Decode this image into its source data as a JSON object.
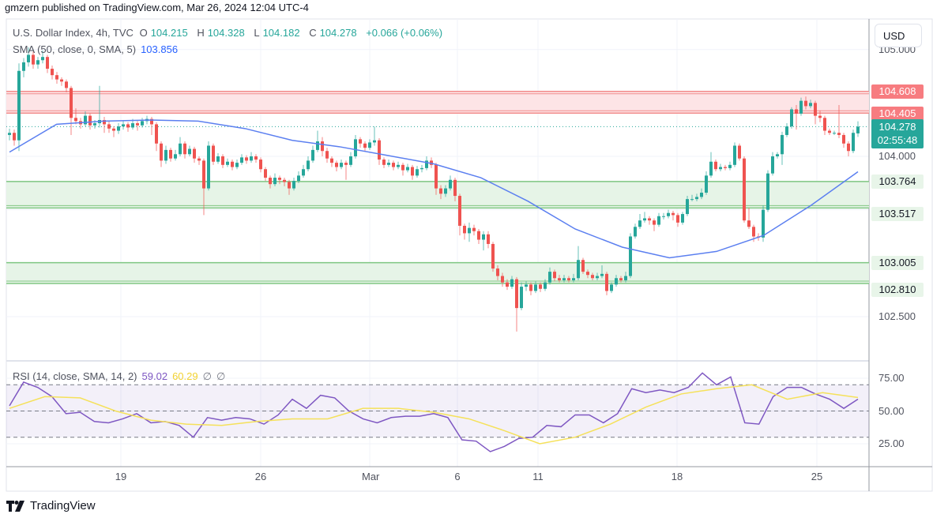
{
  "header": {
    "published": "gmzern published on TradingView.com, Mar 26, 2024 12:04 UTC-4"
  },
  "legend": {
    "symbol": "U.S. Dollar Index, 4h, TVC",
    "o_label": "O",
    "o": "104.215",
    "h_label": "H",
    "h": "104.328",
    "l_label": "L",
    "l": "104.182",
    "c_label": "C",
    "c": "104.278",
    "change": "+0.066 (+0.06%)"
  },
  "sma_legend": {
    "label": "SMA (50, close, 0, SMA, 5)",
    "value": "103.856"
  },
  "rsi_legend": {
    "label": "RSI (14, close, SMA, 14, 2)",
    "value": "59.02",
    "ma_value": "60.29",
    "extra1": "∅",
    "extra2": "∅"
  },
  "currency_button": "USD",
  "footer": {
    "logo_text": "TradingView"
  },
  "colors": {
    "up": "#26a69a",
    "down": "#ef5350",
    "sma": "#5b7ff0",
    "rsi": "#7e57c2",
    "rsi_ma": "#f5e15a",
    "resistance_zone": "#f28b8b",
    "support_zone": "#81c784"
  },
  "chart_data": {
    "type": "candlestick",
    "title": "U.S. Dollar Index, 4h, TVC",
    "ylim": [
      102.0,
      105.2
    ],
    "grid": true,
    "x_ticks": [
      "19",
      "26",
      "Mar",
      "6",
      "11",
      "18",
      "25"
    ],
    "price_ticks": [
      "105.000",
      "104.000",
      "102.500"
    ],
    "candles": [
      [
        104.2,
        104.26,
        104.15,
        104.22
      ],
      [
        104.22,
        104.25,
        104.1,
        104.15
      ],
      [
        104.15,
        104.87,
        104.05,
        104.8
      ],
      [
        104.8,
        104.92,
        104.74,
        104.88
      ],
      [
        104.88,
        105.02,
        104.84,
        104.95
      ],
      [
        104.95,
        104.98,
        104.82,
        104.86
      ],
      [
        104.86,
        104.93,
        104.82,
        104.9
      ],
      [
        104.9,
        104.99,
        104.87,
        104.93
      ],
      [
        104.93,
        104.95,
        104.78,
        104.82
      ],
      [
        104.82,
        104.85,
        104.72,
        104.76
      ],
      [
        104.76,
        104.79,
        104.68,
        104.72
      ],
      [
        104.72,
        104.74,
        104.66,
        104.7
      ],
      [
        104.7,
        104.72,
        104.6,
        104.64
      ],
      [
        104.64,
        104.66,
        104.2,
        104.36
      ],
      [
        104.36,
        104.45,
        104.3,
        104.33
      ],
      [
        104.33,
        104.36,
        104.26,
        104.3
      ],
      [
        104.3,
        104.42,
        104.28,
        104.38
      ],
      [
        104.38,
        104.4,
        104.25,
        104.29
      ],
      [
        104.29,
        104.34,
        104.26,
        104.31
      ],
      [
        104.31,
        104.66,
        104.27,
        104.34
      ],
      [
        104.34,
        104.37,
        104.22,
        104.3
      ],
      [
        104.3,
        104.33,
        104.22,
        104.26
      ],
      [
        104.26,
        104.28,
        104.18,
        104.24
      ],
      [
        104.24,
        104.31,
        104.21,
        104.28
      ],
      [
        104.28,
        104.33,
        104.25,
        104.3
      ],
      [
        104.3,
        104.32,
        104.23,
        104.27
      ],
      [
        104.27,
        104.35,
        104.25,
        104.31
      ],
      [
        104.31,
        104.33,
        104.24,
        104.29
      ],
      [
        104.29,
        104.36,
        104.27,
        104.33
      ],
      [
        104.33,
        104.38,
        104.3,
        104.35
      ],
      [
        104.35,
        104.37,
        104.2,
        104.3
      ],
      [
        104.3,
        104.32,
        104.05,
        104.12
      ],
      [
        104.12,
        104.14,
        103.9,
        103.96
      ],
      [
        103.96,
        104.1,
        103.93,
        104.06
      ],
      [
        104.06,
        104.08,
        103.95,
        103.98
      ],
      [
        103.98,
        104.06,
        103.96,
        104.02
      ],
      [
        104.02,
        104.18,
        104.0,
        104.12
      ],
      [
        104.12,
        104.14,
        103.98,
        104.02
      ],
      [
        104.02,
        104.1,
        104.0,
        104.07
      ],
      [
        104.07,
        104.09,
        103.94,
        103.98
      ],
      [
        103.98,
        104.0,
        103.92,
        103.96
      ],
      [
        103.96,
        103.98,
        103.45,
        103.7
      ],
      [
        103.7,
        104.14,
        103.68,
        104.1
      ],
      [
        104.1,
        104.12,
        103.92,
        103.95
      ],
      [
        103.95,
        104.03,
        103.93,
        104.0
      ],
      [
        104.0,
        104.02,
        103.89,
        103.92
      ],
      [
        103.92,
        103.98,
        103.9,
        103.95
      ],
      [
        103.95,
        103.97,
        103.87,
        103.9
      ],
      [
        103.9,
        103.97,
        103.88,
        103.94
      ],
      [
        103.94,
        104.02,
        103.92,
        103.99
      ],
      [
        103.99,
        104.01,
        103.93,
        103.96
      ],
      [
        103.96,
        104.04,
        103.94,
        104.0
      ],
      [
        104.0,
        104.02,
        103.94,
        103.97
      ],
      [
        103.97,
        103.99,
        103.85,
        103.88
      ],
      [
        103.88,
        103.9,
        103.77,
        103.8
      ],
      [
        103.8,
        103.82,
        103.7,
        103.74
      ],
      [
        103.74,
        103.84,
        103.72,
        103.8
      ],
      [
        103.8,
        103.82,
        103.74,
        103.78
      ],
      [
        103.78,
        103.8,
        103.72,
        103.76
      ],
      [
        103.76,
        103.78,
        103.64,
        103.7
      ],
      [
        103.7,
        103.8,
        103.68,
        103.77
      ],
      [
        103.77,
        103.86,
        103.75,
        103.82
      ],
      [
        103.82,
        103.92,
        103.8,
        103.88
      ],
      [
        103.88,
        104.0,
        103.86,
        103.96
      ],
      [
        103.96,
        104.1,
        103.94,
        104.06
      ],
      [
        104.06,
        104.24,
        104.04,
        104.14
      ],
      [
        104.14,
        104.18,
        104.0,
        104.05
      ],
      [
        104.05,
        104.08,
        103.94,
        103.98
      ],
      [
        103.98,
        104.0,
        103.9,
        103.94
      ],
      [
        103.94,
        103.96,
        103.86,
        103.9
      ],
      [
        103.9,
        103.97,
        103.88,
        103.94
      ],
      [
        103.94,
        103.96,
        103.78,
        103.92
      ],
      [
        103.92,
        104.04,
        103.9,
        104.0
      ],
      [
        104.0,
        104.2,
        103.98,
        104.16
      ],
      [
        104.16,
        104.18,
        104.08,
        104.12
      ],
      [
        104.12,
        104.14,
        104.05,
        104.08
      ],
      [
        104.08,
        104.16,
        104.06,
        104.13
      ],
      [
        104.13,
        104.28,
        104.1,
        104.15
      ],
      [
        104.15,
        104.17,
        103.92,
        103.97
      ],
      [
        103.97,
        103.99,
        103.89,
        103.92
      ],
      [
        103.92,
        103.97,
        103.9,
        103.94
      ],
      [
        103.94,
        103.96,
        103.87,
        103.9
      ],
      [
        103.9,
        103.95,
        103.88,
        103.92
      ],
      [
        103.92,
        103.94,
        103.82,
        103.87
      ],
      [
        103.87,
        103.93,
        103.85,
        103.9
      ],
      [
        103.9,
        103.92,
        103.78,
        103.82
      ],
      [
        103.82,
        103.91,
        103.8,
        103.88
      ],
      [
        103.88,
        103.92,
        103.85,
        103.89
      ],
      [
        103.89,
        104.0,
        103.87,
        103.96
      ],
      [
        103.96,
        103.99,
        103.89,
        103.92
      ],
      [
        103.92,
        103.94,
        103.64,
        103.7
      ],
      [
        103.7,
        103.73,
        103.6,
        103.65
      ],
      [
        103.65,
        103.73,
        103.62,
        103.7
      ],
      [
        103.7,
        103.82,
        103.68,
        103.78
      ],
      [
        103.78,
        103.8,
        103.58,
        103.63
      ],
      [
        103.63,
        103.65,
        103.26,
        103.35
      ],
      [
        103.35,
        103.37,
        103.22,
        103.28
      ],
      [
        103.28,
        103.38,
        103.2,
        103.33
      ],
      [
        103.33,
        103.36,
        103.26,
        103.3
      ],
      [
        103.3,
        103.32,
        103.18,
        103.22
      ],
      [
        103.22,
        103.3,
        103.12,
        103.27
      ],
      [
        103.27,
        103.3,
        103.14,
        103.18
      ],
      [
        103.18,
        103.2,
        102.92,
        102.95
      ],
      [
        102.95,
        102.98,
        102.84,
        102.88
      ],
      [
        102.88,
        102.91,
        102.78,
        102.82
      ],
      [
        102.82,
        102.85,
        102.75,
        102.78
      ],
      [
        102.78,
        102.88,
        102.76,
        102.85
      ],
      [
        102.85,
        102.87,
        102.36,
        102.58
      ],
      [
        102.58,
        102.82,
        102.56,
        102.78
      ],
      [
        102.78,
        102.83,
        102.74,
        102.8
      ],
      [
        102.8,
        102.82,
        102.7,
        102.74
      ],
      [
        102.74,
        102.83,
        102.72,
        102.8
      ],
      [
        102.8,
        102.82,
        102.73,
        102.76
      ],
      [
        102.76,
        102.85,
        102.74,
        102.82
      ],
      [
        102.82,
        102.96,
        102.8,
        102.92
      ],
      [
        102.92,
        102.94,
        102.83,
        102.86
      ],
      [
        102.86,
        102.89,
        102.82,
        102.84
      ],
      [
        102.84,
        102.89,
        102.82,
        102.86
      ],
      [
        102.86,
        102.88,
        102.82,
        102.84
      ],
      [
        102.84,
        102.9,
        102.82,
        102.86
      ],
      [
        102.86,
        103.16,
        102.84,
        103.03
      ],
      [
        103.03,
        103.05,
        102.9,
        102.92
      ],
      [
        102.92,
        102.94,
        102.86,
        102.89
      ],
      [
        102.89,
        102.91,
        102.84,
        102.86
      ],
      [
        102.86,
        102.91,
        102.84,
        102.88
      ],
      [
        102.88,
        102.98,
        102.86,
        102.9
      ],
      [
        102.9,
        102.92,
        102.7,
        102.74
      ],
      [
        102.74,
        102.82,
        102.72,
        102.8
      ],
      [
        102.8,
        102.89,
        102.78,
        102.86
      ],
      [
        102.86,
        102.88,
        102.82,
        102.84
      ],
      [
        102.84,
        102.92,
        102.82,
        102.88
      ],
      [
        102.88,
        103.28,
        102.86,
        103.25
      ],
      [
        103.25,
        103.37,
        103.23,
        103.34
      ],
      [
        103.34,
        103.46,
        103.32,
        103.4
      ],
      [
        103.4,
        103.48,
        103.38,
        103.42
      ],
      [
        103.42,
        103.44,
        103.36,
        103.4
      ],
      [
        103.4,
        103.42,
        103.3,
        103.36
      ],
      [
        103.36,
        103.47,
        103.34,
        103.44
      ],
      [
        103.44,
        103.47,
        103.41,
        103.44
      ],
      [
        103.44,
        103.5,
        103.42,
        103.47
      ],
      [
        103.47,
        103.49,
        103.4,
        103.45
      ],
      [
        103.45,
        103.47,
        103.34,
        103.38
      ],
      [
        103.38,
        103.48,
        103.36,
        103.46
      ],
      [
        103.46,
        103.63,
        103.44,
        103.6
      ],
      [
        103.6,
        103.64,
        103.58,
        103.6
      ],
      [
        103.6,
        103.65,
        103.58,
        103.62
      ],
      [
        103.62,
        103.7,
        103.6,
        103.66
      ],
      [
        103.66,
        103.86,
        103.64,
        103.82
      ],
      [
        103.82,
        104.04,
        103.8,
        103.95
      ],
      [
        103.95,
        103.97,
        103.86,
        103.88
      ],
      [
        103.88,
        103.93,
        103.86,
        103.9
      ],
      [
        103.9,
        103.92,
        103.87,
        103.89
      ],
      [
        103.89,
        103.95,
        103.87,
        103.92
      ],
      [
        103.92,
        104.13,
        103.9,
        104.1
      ],
      [
        104.1,
        104.12,
        103.96,
        103.98
      ],
      [
        103.98,
        104.0,
        103.38,
        103.4
      ],
      [
        103.4,
        103.52,
        103.32,
        103.34
      ],
      [
        103.34,
        103.36,
        103.2,
        103.25
      ],
      [
        103.25,
        103.28,
        103.21,
        103.24
      ],
      [
        103.24,
        103.54,
        103.2,
        103.5
      ],
      [
        103.5,
        103.87,
        103.48,
        103.84
      ],
      [
        103.84,
        104.04,
        103.82,
        104.0
      ],
      [
        104.0,
        104.04,
        103.98,
        104.02
      ],
      [
        104.02,
        104.23,
        103.92,
        104.2
      ],
      [
        104.2,
        104.31,
        104.18,
        104.28
      ],
      [
        104.28,
        104.46,
        104.26,
        104.44
      ],
      [
        104.44,
        104.48,
        104.25,
        104.4
      ],
      [
        104.4,
        104.55,
        104.38,
        104.52
      ],
      [
        104.52,
        104.56,
        104.44,
        104.47
      ],
      [
        104.47,
        104.53,
        104.45,
        104.5
      ],
      [
        104.5,
        104.52,
        104.3,
        104.38
      ],
      [
        104.38,
        104.43,
        104.32,
        104.36
      ],
      [
        104.36,
        104.38,
        104.2,
        104.24
      ],
      [
        104.24,
        104.26,
        104.2,
        104.22
      ],
      [
        104.22,
        104.24,
        104.2,
        104.22
      ],
      [
        104.22,
        104.48,
        104.17,
        104.2
      ],
      [
        104.2,
        104.22,
        104.08,
        104.12
      ],
      [
        104.12,
        104.14,
        104.0,
        104.05
      ],
      [
        104.05,
        104.25,
        104.03,
        104.22
      ],
      [
        104.215,
        104.328,
        104.182,
        104.278
      ]
    ],
    "sma": [
      104.04,
      104.3,
      104.33,
      104.34,
      104.33,
      104.26,
      104.15,
      104.09,
      104.01,
      103.93,
      103.8,
      103.58,
      103.32,
      103.15,
      103.05,
      103.11,
      103.26,
      103.54,
      103.856
    ],
    "zones": [
      {
        "kind": "resistance",
        "upper": 104.608,
        "lower": 104.405,
        "upper_label": "104.608",
        "lower_label": "104.405"
      },
      {
        "kind": "support",
        "upper": 103.764,
        "lower": 103.517,
        "upper_label": "103.764",
        "lower_label": "103.517"
      },
      {
        "kind": "support",
        "upper": 103.005,
        "lower": 102.81,
        "upper_label": "103.005",
        "lower_label": "102.810"
      }
    ],
    "current_price": {
      "value": 104.278,
      "label": "104.278",
      "countdown": "02:55:48"
    },
    "rsi": {
      "values": [
        54,
        72,
        68,
        61,
        48,
        49,
        42,
        41,
        44,
        48,
        41,
        42,
        39,
        30,
        45,
        43,
        45,
        44,
        40,
        47,
        59,
        52,
        62,
        60,
        50,
        44,
        41,
        45,
        46,
        46,
        48,
        45,
        28,
        27,
        19,
        23,
        29,
        30,
        39,
        38,
        47,
        47,
        41,
        48,
        67,
        64,
        66,
        64,
        68,
        79,
        70,
        76,
        41,
        40,
        61,
        68,
        68,
        63,
        59,
        52,
        59.02
      ],
      "ma": [
        52,
        61,
        60,
        50,
        43,
        40,
        39,
        42,
        44,
        44,
        52,
        52,
        49,
        44,
        35,
        25,
        30,
        40,
        53,
        63,
        67,
        70,
        59,
        64,
        60.29
      ],
      "levels": [
        70,
        50,
        30
      ],
      "ticks": [
        "75.00",
        "50.00",
        "25.00"
      ]
    }
  }
}
